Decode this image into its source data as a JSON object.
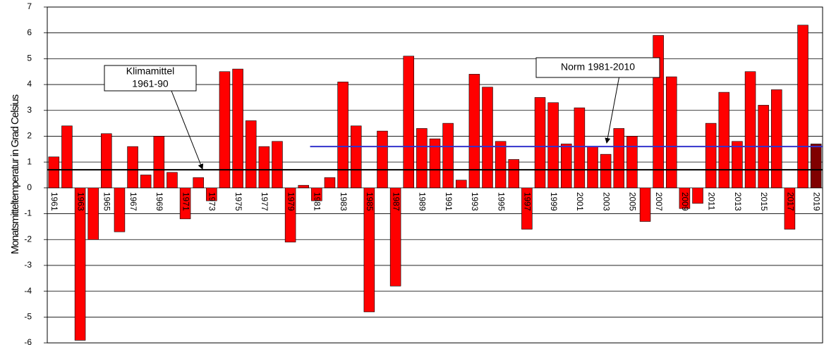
{
  "chart_data": {
    "type": "bar",
    "y_label": "Monatsmitteltemperatur in Grad Celsius",
    "categories": [
      "1961",
      null,
      "1963",
      null,
      "1965",
      null,
      "1967",
      null,
      "1969",
      null,
      "1971",
      null,
      "1973",
      null,
      "1975",
      null,
      "1977",
      null,
      "1979",
      null,
      "1981",
      null,
      "1983",
      null,
      "1985",
      null,
      "1987",
      null,
      "1989",
      null,
      "1991",
      null,
      "1993",
      null,
      "1995",
      null,
      "1997",
      null,
      "1999",
      null,
      "2001",
      null,
      "2003",
      null,
      "2005",
      null,
      "2007",
      null,
      "2009",
      null,
      "2011",
      null,
      "2013",
      null,
      "2015",
      null,
      "2017",
      null,
      "2019"
    ],
    "values": [
      1.2,
      2.4,
      -5.9,
      -2.0,
      2.1,
      -1.7,
      1.6,
      0.5,
      2.0,
      0.6,
      -1.2,
      0.4,
      -0.5,
      4.5,
      4.6,
      2.6,
      1.6,
      1.8,
      -2.1,
      0.1,
      -0.5,
      0.4,
      4.1,
      2.4,
      -4.8,
      2.2,
      -3.8,
      5.1,
      2.3,
      1.9,
      2.5,
      0.3,
      4.4,
      3.9,
      1.8,
      1.1,
      -1.6,
      3.5,
      3.3,
      1.7,
      3.1,
      1.6,
      1.3,
      2.3,
      2.0,
      -1.3,
      5.9,
      4.3,
      -0.8,
      -0.6,
      2.5,
      3.7,
      1.8,
      4.5,
      3.2,
      3.8,
      -1.6,
      6.3,
      1.7
    ],
    "color": "#ff0000",
    "highlight_color": "#800000",
    "highlight_index": 58,
    "ylim": [
      -6,
      7
    ],
    "yticks": [
      -6,
      -5,
      -4,
      -3,
      -2,
      -1,
      0,
      1,
      2,
      3,
      4,
      5,
      6,
      7
    ],
    "grid": true,
    "reference_lines": [
      {
        "label": [
          "Klimamittel",
          "1961-90"
        ],
        "value": 0.7,
        "from": "1961",
        "color": "#000000"
      },
      {
        "label": [
          "Norm 1981-2010"
        ],
        "value": 1.6,
        "from": "1981",
        "color": "#3333cc"
      }
    ]
  }
}
